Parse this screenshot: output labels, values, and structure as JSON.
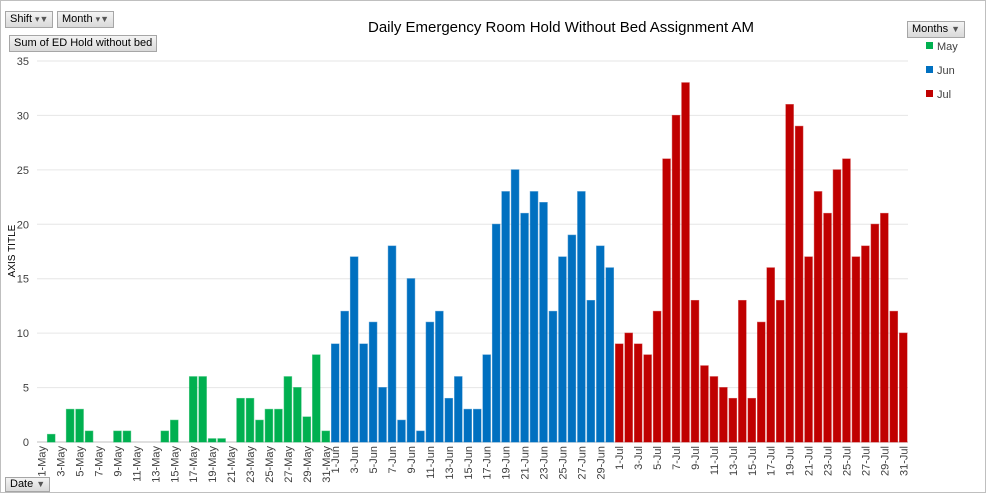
{
  "filters": {
    "shift": "Shift",
    "month": "Month",
    "value_field": "Sum of ED Hold without bed",
    "legend_field": "Months",
    "axis_field": "Date"
  },
  "icons": {
    "filter": "funnel-filter-icon",
    "dropdown": "dropdown-arrow-icon"
  },
  "chart_data": {
    "type": "bar",
    "title": "Daily Emergency Room Hold Without Bed Assignment AM",
    "ylabel": "AXIS TITLE",
    "xlabel": "",
    "ylim": [
      0,
      35
    ],
    "yticks": [
      0,
      5,
      10,
      15,
      20,
      25,
      30,
      35
    ],
    "grid": true,
    "legend_position": "right",
    "series": [
      {
        "name": "May",
        "color": "#00b050",
        "days": [
          1,
          2,
          3,
          4,
          5,
          6,
          7,
          8,
          9,
          10,
          11,
          12,
          13,
          14,
          15,
          16,
          17,
          18,
          19,
          20,
          21,
          22,
          23,
          24,
          25,
          26,
          27,
          28,
          29,
          30,
          31
        ],
        "values": [
          0,
          0.7,
          0,
          3,
          3,
          1,
          0,
          0,
          1,
          1,
          0,
          0,
          0,
          1,
          2,
          0,
          6,
          6,
          0.3,
          0.3,
          0,
          4,
          4,
          2,
          3,
          3,
          6,
          5,
          2.3,
          8,
          1
        ]
      },
      {
        "name": "Jun",
        "color": "#0070c0",
        "days": [
          1,
          2,
          3,
          4,
          5,
          6,
          7,
          8,
          9,
          10,
          11,
          12,
          13,
          14,
          15,
          16,
          17,
          18,
          19,
          20,
          21,
          22,
          23,
          24,
          25,
          26,
          27,
          28,
          29,
          30
        ],
        "values": [
          9,
          12,
          17,
          9,
          11,
          5,
          18,
          2,
          15,
          1,
          11,
          12,
          4,
          6,
          3,
          3,
          8,
          20,
          23,
          25,
          21,
          23,
          22,
          12,
          17,
          19,
          23,
          13,
          18,
          16
        ]
      },
      {
        "name": "Jul",
        "color": "#c00000",
        "days": [
          1,
          2,
          3,
          4,
          5,
          6,
          7,
          8,
          9,
          10,
          11,
          12,
          13,
          14,
          15,
          16,
          17,
          18,
          19,
          20,
          21,
          22,
          23,
          24,
          25,
          26,
          27,
          28,
          29,
          30,
          31
        ],
        "values": [
          9,
          10,
          9,
          8,
          12,
          26,
          30,
          33,
          13,
          7,
          6,
          5,
          4,
          13,
          4,
          11,
          16,
          13,
          31,
          29,
          17,
          23,
          21,
          25,
          26,
          17,
          18,
          20,
          21,
          12,
          10
        ]
      }
    ]
  }
}
